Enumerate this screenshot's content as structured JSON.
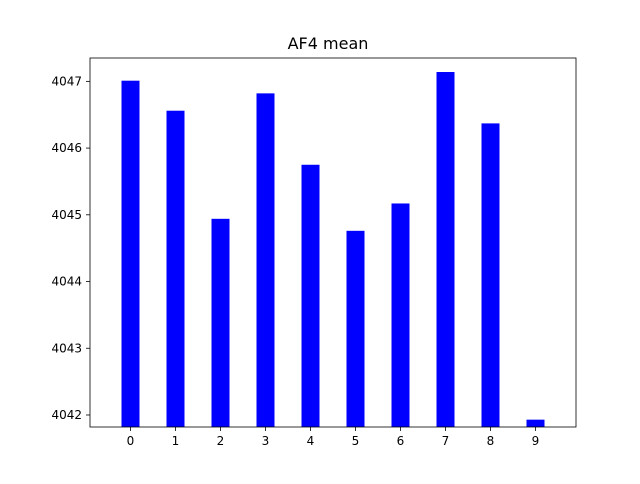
{
  "chart_data": {
    "type": "bar",
    "title": "AF4 mean",
    "xlabel": "",
    "ylabel": "",
    "categories": [
      "0",
      "1",
      "2",
      "3",
      "4",
      "5",
      "6",
      "7",
      "8",
      "9"
    ],
    "values": [
      4047.01,
      4046.56,
      4044.94,
      4046.82,
      4045.75,
      4044.76,
      4045.17,
      4047.14,
      4046.37,
      4041.93
    ],
    "ylim": [
      4041.82,
      4047.35
    ],
    "yticks": [
      4042,
      4043,
      4044,
      4045,
      4046,
      4047
    ],
    "grid": false,
    "legend": "none",
    "bar_color": "#0000ff",
    "axis_color": "#000000"
  }
}
